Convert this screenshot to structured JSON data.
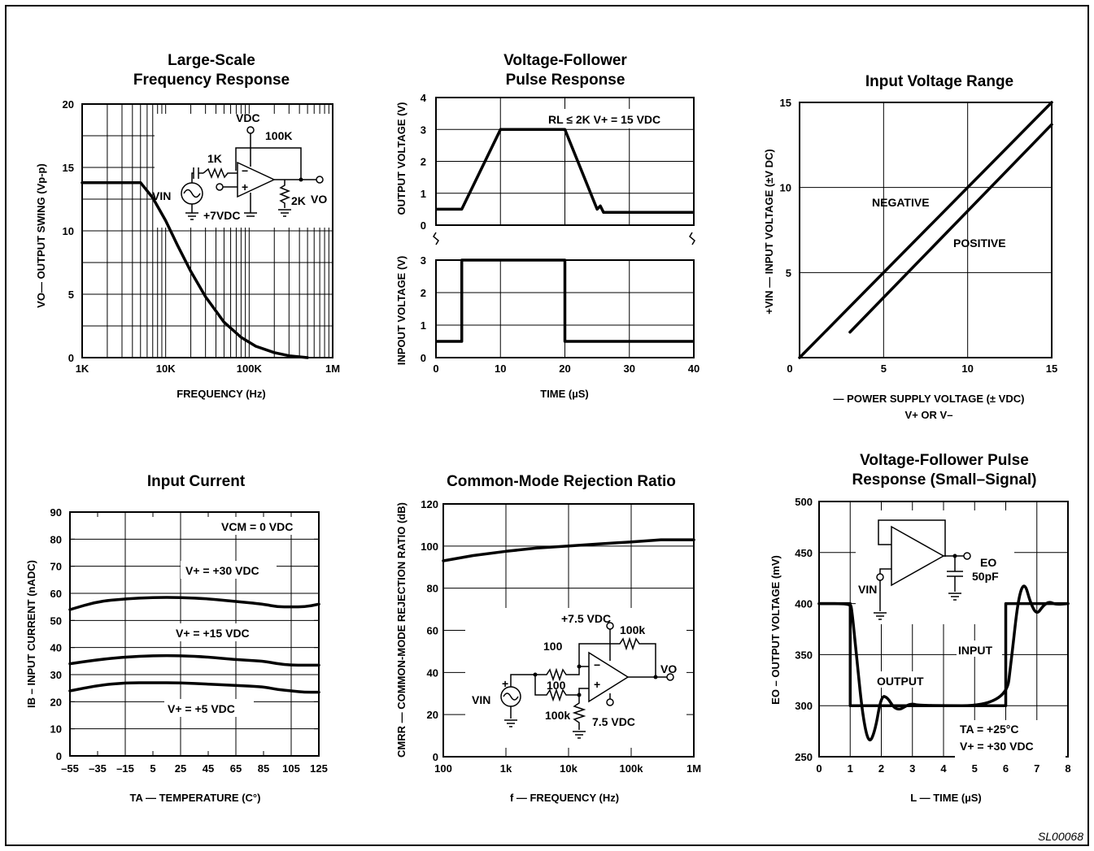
{
  "figure_code": "SL00068",
  "chart_data": [
    {
      "id": "c1",
      "type": "line",
      "title": [
        "Large-Scale",
        "Frequency Response"
      ],
      "xlabel": "FREQUENCY (Hz)",
      "ylabel": "VO— OUTPUT SWING (Vp-p)",
      "x_scale": "log",
      "xlim": [
        1000,
        1000000
      ],
      "ylim": [
        0,
        20
      ],
      "x_ticks": [
        {
          "v": 1000,
          "label": "1K"
        },
        {
          "v": 10000,
          "label": "10K"
        },
        {
          "v": 100000,
          "label": "100K"
        },
        {
          "v": 1000000,
          "label": "1M"
        }
      ],
      "y_ticks": [
        {
          "v": 0,
          "label": "0"
        },
        {
          "v": 5,
          "label": "5"
        },
        {
          "v": 10,
          "label": "10"
        },
        {
          "v": 15,
          "label": "15"
        },
        {
          "v": 20,
          "label": "20"
        }
      ],
      "series": [
        {
          "x": [
            1000,
            5000,
            7000,
            10000,
            14000,
            20000,
            30000,
            50000,
            80000,
            120000,
            200000,
            300000,
            500000
          ],
          "y": [
            13.8,
            13.8,
            12.6,
            10.8,
            8.8,
            6.8,
            4.8,
            2.8,
            1.6,
            0.9,
            0.4,
            0.15,
            0
          ]
        }
      ],
      "annotations": {
        "vdc": "VDC",
        "r100k": "100K",
        "r1k": "1K",
        "vin": "VIN",
        "vdc7": "+7VDC",
        "r2k": "2K",
        "vo": "VO"
      }
    },
    {
      "id": "c2",
      "type": "line",
      "title": [
        "Voltage-Follower",
        "Pulse Response"
      ],
      "xlabel": "TIME (µS)",
      "ylabel_top": "OUTPUT VOLTAGE (V)",
      "ylabel_bottom": "INPOUT VOLTAGE (V)",
      "xlim": [
        0,
        40
      ],
      "ylim": [
        0,
        4
      ],
      "x_ticks": [
        0,
        10,
        20,
        30,
        40
      ],
      "top_y_ticks": [
        0,
        1,
        2,
        3,
        4
      ],
      "bottom_y_ticks": [
        0,
        1,
        2,
        3
      ],
      "series": [
        {
          "panel": "top",
          "x": [
            -1,
            4,
            10,
            20,
            25,
            25.5,
            26,
            41
          ],
          "y": [
            0.5,
            0.5,
            3,
            3,
            0.5,
            0.6,
            0.4,
            0.4
          ]
        },
        {
          "panel": "bottom",
          "x": [
            -1,
            4,
            4,
            20,
            20,
            41
          ],
          "y": [
            0.5,
            0.5,
            3,
            3,
            0.5,
            0.5
          ]
        }
      ],
      "annotation": "RL ≤ 2K V+ = 15 VDC"
    },
    {
      "id": "c3",
      "type": "line",
      "title": [
        "Input Voltage Range"
      ],
      "xlabel": "— POWER SUPPLY VOLTAGE (± VDC)",
      "xlabel2": "V+ OR V–",
      "ylabel": "+VIN — INPUT VOLTAGE (±V DC)",
      "xlim": [
        0,
        15
      ],
      "ylim": [
        0,
        15
      ],
      "x_ticks": [
        0,
        5,
        10,
        15
      ],
      "y_ticks": [
        5,
        10,
        15
      ],
      "series": [
        {
          "name": "NEGATIVE",
          "x": [
            0,
            15
          ],
          "y": [
            0,
            15
          ]
        },
        {
          "name": "POSITIVE",
          "x": [
            3,
            15
          ],
          "y": [
            1.5,
            13.7
          ]
        }
      ]
    },
    {
      "id": "c4",
      "type": "line",
      "title": [
        "Input Current"
      ],
      "xlabel": "TA — TEMPERATURE (C°)",
      "ylabel": "IB – INPUT CURRENT (nADC)",
      "xlim": [
        -55,
        125
      ],
      "ylim": [
        0,
        90
      ],
      "x_ticks": [
        -55,
        -35,
        -15,
        5,
        25,
        45,
        65,
        85,
        105,
        125
      ],
      "y_ticks": [
        0,
        10,
        20,
        30,
        40,
        50,
        60,
        70,
        80,
        90
      ],
      "series": [
        {
          "name": "V+ = +30 VDC",
          "x": [
            -55,
            -35,
            -15,
            5,
            25,
            45,
            65,
            85,
            95,
            105,
            115,
            125
          ],
          "y": [
            54,
            57,
            58,
            58.5,
            58.5,
            58,
            57,
            56,
            55,
            55,
            55,
            56
          ]
        },
        {
          "name": "V+ = +15 VDC",
          "x": [
            -55,
            -35,
            -15,
            5,
            25,
            45,
            65,
            85,
            95,
            105,
            115,
            125
          ],
          "y": [
            34,
            35.5,
            36.5,
            37,
            37,
            36.5,
            35.5,
            35,
            34,
            33.5,
            33.5,
            33.5
          ]
        },
        {
          "name": "V+ = +5 VDC",
          "x": [
            -55,
            -35,
            -15,
            5,
            25,
            45,
            65,
            85,
            95,
            105,
            115,
            125
          ],
          "y": [
            24,
            26,
            27,
            27,
            27,
            26.5,
            26,
            25.5,
            24.5,
            24,
            23.5,
            23.5
          ]
        }
      ],
      "annotation_vcm": "VCM = 0 VDC"
    },
    {
      "id": "c5",
      "type": "line",
      "title": [
        "Common-Mode Rejection Ratio"
      ],
      "xlabel": "f — FREQUENCY (Hz)",
      "ylabel": "CMRR — COMMON-MODE REJECTION RATIO (dB)",
      "x_scale": "log",
      "xlim": [
        100,
        1000000
      ],
      "ylim": [
        0,
        120
      ],
      "x_ticks": [
        {
          "v": 100,
          "label": "100"
        },
        {
          "v": 1000,
          "label": "1k"
        },
        {
          "v": 10000,
          "label": "10k"
        },
        {
          "v": 100000,
          "label": "100k"
        },
        {
          "v": 1000000,
          "label": "1M"
        }
      ],
      "y_ticks": [
        0,
        20,
        40,
        60,
        80,
        100,
        120
      ],
      "series": [
        {
          "x": [
            100,
            300,
            1000,
            3000,
            10000,
            30000,
            100000,
            300000,
            1000000
          ],
          "y": [
            93,
            95.5,
            97.5,
            99,
            100,
            101,
            102,
            103,
            103
          ]
        }
      ],
      "annotations": {
        "vplus": "+7.5 VDC",
        "r100k": "100k",
        "r100a": "100",
        "r100b": "100",
        "r100k2": "100k",
        "vminus": "7.5 VDC",
        "vin": "VIN",
        "vo": "VO"
      }
    },
    {
      "id": "c6",
      "type": "line",
      "title": [
        "Voltage-Follower Pulse",
        "Response (Small–Signal)"
      ],
      "xlabel": "L — TIME (µS)",
      "ylabel": "EO – OUTPUT VOLTAGE (mV)",
      "xlim": [
        0,
        8
      ],
      "ylim": [
        250,
        500
      ],
      "x_ticks": [
        0,
        1,
        2,
        3,
        4,
        5,
        6,
        7,
        8
      ],
      "y_ticks": [
        250,
        300,
        350,
        400,
        450,
        500
      ],
      "series": [
        {
          "name": "INPUT",
          "x": [
            0,
            1,
            1,
            6,
            6,
            8
          ],
          "y": [
            400,
            400,
            300,
            300,
            400,
            400
          ]
        },
        {
          "name": "OUTPUT",
          "x": [
            0,
            1,
            1.05,
            1.2,
            1.4,
            1.6,
            1.8,
            2.0,
            2.2,
            2.4,
            2.6,
            2.8,
            3.0,
            3.2,
            6.0,
            6.2,
            6.4,
            6.6,
            6.8,
            7.0,
            7.2,
            7.4,
            7.6,
            8
          ],
          "y": [
            400,
            400,
            395,
            350,
            290,
            262,
            275,
            310,
            308,
            298,
            296,
            300,
            302,
            300,
            300,
            350,
            405,
            422,
            400,
            389,
            398,
            402,
            399,
            400
          ]
        }
      ],
      "annotations": {
        "input": "INPUT",
        "output": "OUTPUT",
        "ta": "TA = +25°C",
        "vplus": "V+ = +30 VDC",
        "vin": "VIN",
        "eo": "EO",
        "cap": "50pF"
      }
    }
  ]
}
